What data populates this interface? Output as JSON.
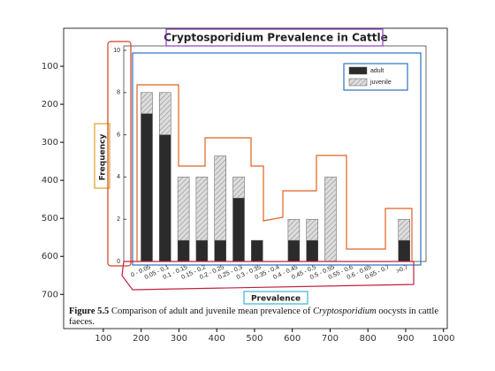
{
  "chart_data": [
    {
      "type": "image",
      "xlim": [
        -5,
        1010
      ],
      "ylim": [
        790,
        0
      ],
      "xticks": [
        100,
        200,
        300,
        400,
        500,
        600,
        700,
        800,
        900,
        1000
      ],
      "yticks": [
        100,
        200,
        300,
        400,
        500,
        600,
        700
      ]
    },
    {
      "type": "stacked_bar",
      "title": "Cryptosporidium Prevalence in Cattle",
      "x_label": "Prevalence",
      "y_label": "Frequency",
      "categories": [
        "0 - 0.05",
        "0.05 - 0.1",
        "0.1 - 0.15",
        "0.15 - 0.2",
        "0.2 - 0.25",
        "0.25 - 0.3",
        "0.3 - 0.35",
        "0.35 - 0.4",
        "0.4 - 0.45",
        "0.45 - 0.5",
        "0.5 - 0.55",
        "0.55 - 0.6",
        "0.6 - 0.65",
        "0.65 - 0.7",
        ">0.7"
      ],
      "series": [
        {
          "name": "adult",
          "color": "#2b2b2b",
          "values": [
            7,
            6,
            1,
            1,
            1,
            3,
            1,
            0,
            1,
            1,
            0,
            0,
            0,
            0,
            1
          ]
        },
        {
          "name": "juvenile",
          "color": "#dcdcdc",
          "values": [
            1,
            2,
            3,
            3,
            4,
            1,
            0,
            0,
            1,
            1,
            4,
            0,
            0,
            0,
            1
          ]
        }
      ],
      "ylim": [
        0,
        10
      ],
      "yticks": [
        0,
        2,
        4,
        6,
        8,
        10
      ]
    }
  ],
  "caption": {
    "label": "Figure 5.5",
    "text_before": "Comparison of adult and juvenile mean prevalence of ",
    "italic": "Cryptosporidium",
    "text_after": " oocysts in cattle faeces."
  }
}
